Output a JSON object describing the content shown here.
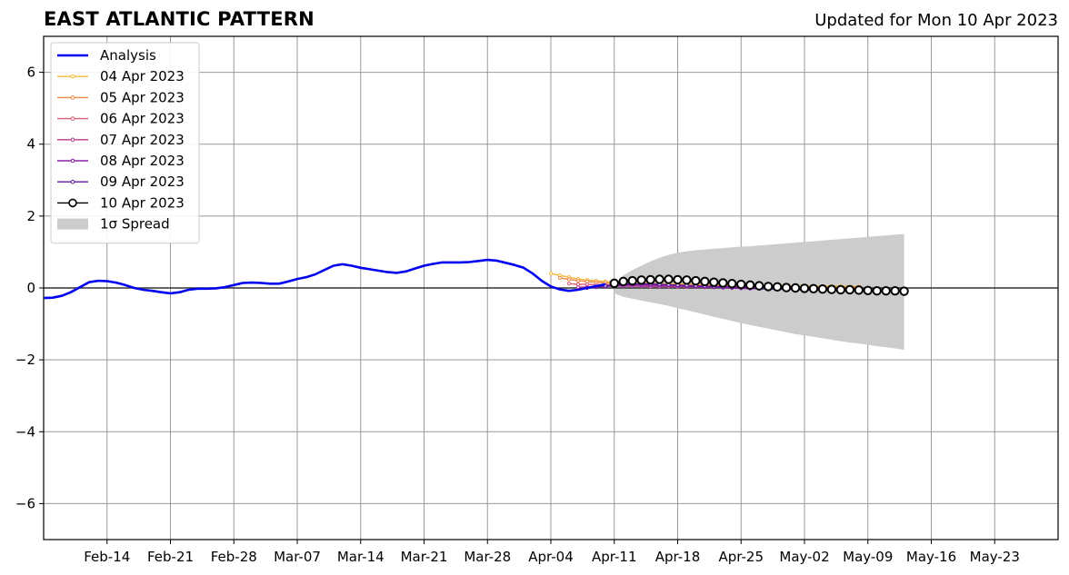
{
  "header": {
    "title": "EAST ATLANTIC PATTERN",
    "updated": "Updated for Mon 10 Apr 2023"
  },
  "chart_data": {
    "type": "line",
    "title": "EAST ATLANTIC PATTERN",
    "subtitle": "Updated for Mon 10 Apr 2023",
    "xlabel": "",
    "ylabel": "",
    "xlim": [
      "2023-02-07",
      "2023-05-30"
    ],
    "ylim": [
      -7,
      7
    ],
    "grid": true,
    "legend_position": "top-left",
    "x_ticks": [
      "2023-02-14",
      "2023-02-21",
      "2023-02-28",
      "2023-03-07",
      "2023-03-14",
      "2023-03-21",
      "2023-03-28",
      "2023-04-04",
      "2023-04-11",
      "2023-04-18",
      "2023-04-25",
      "2023-05-02",
      "2023-05-09",
      "2023-05-16",
      "2023-05-23"
    ],
    "x_tick_labels": [
      "Feb-14",
      "Feb-21",
      "Feb-28",
      "Mar-07",
      "Mar-14",
      "Mar-21",
      "Mar-28",
      "Apr-04",
      "Apr-11",
      "Apr-18",
      "Apr-25",
      "May-02",
      "May-09",
      "May-16",
      "May-23"
    ],
    "y_ticks": [
      -6,
      -4,
      -2,
      0,
      2,
      4,
      6
    ],
    "y_tick_labels": [
      "−6",
      "−4",
      "−2",
      "0",
      "2",
      "4",
      "6"
    ],
    "analysis": {
      "name": "Analysis",
      "color": "#0000ee",
      "points": [
        [
          "2023-02-07",
          -0.28
        ],
        [
          "2023-02-08",
          -0.27
        ],
        [
          "2023-02-09",
          -0.22
        ],
        [
          "2023-02-10",
          -0.12
        ],
        [
          "2023-02-11",
          0.02
        ],
        [
          "2023-02-12",
          0.16
        ],
        [
          "2023-02-13",
          0.2
        ],
        [
          "2023-02-14",
          0.19
        ],
        [
          "2023-02-15",
          0.15
        ],
        [
          "2023-02-16",
          0.08
        ],
        [
          "2023-02-17",
          0.0
        ],
        [
          "2023-02-18",
          -0.05
        ],
        [
          "2023-02-19",
          -0.08
        ],
        [
          "2023-02-20",
          -0.12
        ],
        [
          "2023-02-21",
          -0.15
        ],
        [
          "2023-02-22",
          -0.12
        ],
        [
          "2023-02-23",
          -0.05
        ],
        [
          "2023-02-24",
          -0.02
        ],
        [
          "2023-02-25",
          -0.02
        ],
        [
          "2023-02-26",
          -0.01
        ],
        [
          "2023-02-27",
          0.02
        ],
        [
          "2023-02-28",
          0.08
        ],
        [
          "2023-03-01",
          0.14
        ],
        [
          "2023-03-02",
          0.15
        ],
        [
          "2023-03-03",
          0.14
        ],
        [
          "2023-03-04",
          0.12
        ],
        [
          "2023-03-05",
          0.12
        ],
        [
          "2023-03-06",
          0.18
        ],
        [
          "2023-03-07",
          0.25
        ],
        [
          "2023-03-08",
          0.3
        ],
        [
          "2023-03-09",
          0.38
        ],
        [
          "2023-03-10",
          0.5
        ],
        [
          "2023-03-11",
          0.62
        ],
        [
          "2023-03-12",
          0.66
        ],
        [
          "2023-03-13",
          0.62
        ],
        [
          "2023-03-14",
          0.56
        ],
        [
          "2023-03-15",
          0.52
        ],
        [
          "2023-03-16",
          0.48
        ],
        [
          "2023-03-17",
          0.44
        ],
        [
          "2023-03-18",
          0.42
        ],
        [
          "2023-03-19",
          0.46
        ],
        [
          "2023-03-20",
          0.54
        ],
        [
          "2023-03-21",
          0.62
        ],
        [
          "2023-03-22",
          0.67
        ],
        [
          "2023-03-23",
          0.71
        ],
        [
          "2023-03-24",
          0.71
        ],
        [
          "2023-03-25",
          0.71
        ],
        [
          "2023-03-26",
          0.72
        ],
        [
          "2023-03-27",
          0.75
        ],
        [
          "2023-03-28",
          0.78
        ],
        [
          "2023-03-29",
          0.76
        ],
        [
          "2023-03-30",
          0.7
        ],
        [
          "2023-03-31",
          0.64
        ],
        [
          "2023-04-01",
          0.56
        ],
        [
          "2023-04-02",
          0.4
        ],
        [
          "2023-04-03",
          0.2
        ],
        [
          "2023-04-04",
          0.04
        ],
        [
          "2023-04-05",
          -0.04
        ],
        [
          "2023-04-06",
          -0.08
        ],
        [
          "2023-04-07",
          -0.05
        ],
        [
          "2023-04-08",
          0.0
        ],
        [
          "2023-04-09",
          0.05
        ],
        [
          "2023-04-10",
          0.1
        ]
      ]
    },
    "forecasts": [
      {
        "name": "04 Apr 2023",
        "color": "#f4b83a",
        "start": "2023-04-04",
        "values": [
          0.4,
          0.35,
          0.3,
          0.25,
          0.22,
          0.2,
          0.18,
          0.17,
          0.16,
          0.15,
          0.14,
          0.13,
          0.12,
          0.12,
          0.11,
          0.1,
          0.1,
          0.09,
          0.09,
          0.08,
          0.08,
          0.08,
          0.07,
          0.07,
          0.07,
          0.06,
          0.06,
          0.06,
          0.06,
          0.05,
          0.05,
          0.05,
          0.05,
          0.04,
          0.04
        ]
      },
      {
        "name": "05 Apr 2023",
        "color": "#ee8a45",
        "start": "2023-04-05",
        "values": [
          0.28,
          0.24,
          0.2,
          0.18,
          0.16,
          0.14,
          0.13,
          0.12,
          0.11,
          0.1,
          0.1,
          0.09,
          0.08,
          0.08,
          0.07,
          0.07,
          0.06,
          0.06,
          0.06,
          0.05,
          0.05,
          0.05,
          0.04,
          0.04,
          0.04,
          0.04,
          0.03,
          0.03,
          0.03,
          0.03,
          0.02,
          0.02,
          0.02,
          0.02
        ]
      },
      {
        "name": "06 Apr 2023",
        "color": "#dd5c78",
        "start": "2023-04-06",
        "values": [
          0.12,
          0.1,
          0.1,
          0.09,
          0.09,
          0.08,
          0.08,
          0.07,
          0.07,
          0.06,
          0.06,
          0.05,
          0.05,
          0.05,
          0.04,
          0.04,
          0.04,
          0.03,
          0.03,
          0.03,
          0.02,
          0.02,
          0.02,
          0.01,
          0.01,
          0.01,
          0.0,
          0.0,
          0.0,
          -0.01,
          -0.01,
          -0.01,
          -0.02
        ]
      },
      {
        "name": "07 Apr 2023",
        "color": "#b83b94",
        "start": "2023-04-07",
        "values": [
          0.02,
          0.03,
          0.04,
          0.05,
          0.05,
          0.05,
          0.05,
          0.05,
          0.04,
          0.04,
          0.04,
          0.03,
          0.03,
          0.03,
          0.02,
          0.02,
          0.01,
          0.01,
          0.0,
          0.0,
          -0.01,
          -0.01,
          -0.02,
          -0.02,
          -0.02,
          -0.03,
          -0.03,
          -0.03,
          -0.04,
          -0.04,
          -0.04,
          -0.05
        ]
      },
      {
        "name": "08 Apr 2023",
        "color": "#8a22a8",
        "start": "2023-04-08",
        "values": [
          0.0,
          0.02,
          0.04,
          0.06,
          0.07,
          0.08,
          0.08,
          0.08,
          0.07,
          0.07,
          0.06,
          0.05,
          0.04,
          0.03,
          0.02,
          0.01,
          0.0,
          -0.01,
          -0.02,
          -0.02,
          -0.03,
          -0.03,
          -0.04,
          -0.04,
          -0.05,
          -0.05,
          -0.05,
          -0.06,
          -0.06,
          -0.06,
          -0.07
        ]
      },
      {
        "name": "09 Apr 2023",
        "color": "#5c1a9e",
        "start": "2023-04-09",
        "values": [
          0.04,
          0.06,
          0.08,
          0.1,
          0.11,
          0.11,
          0.11,
          0.1,
          0.09,
          0.08,
          0.07,
          0.06,
          0.05,
          0.04,
          0.03,
          0.02,
          0.01,
          0.0,
          -0.01,
          -0.02,
          -0.03,
          -0.03,
          -0.04,
          -0.05,
          -0.05,
          -0.06,
          -0.06,
          -0.07,
          -0.07,
          -0.08
        ]
      },
      {
        "name": "10 Apr 2023",
        "color": "#000000",
        "start": "2023-04-11",
        "markers": true,
        "values": [
          0.13,
          0.18,
          0.2,
          0.22,
          0.23,
          0.24,
          0.24,
          0.23,
          0.22,
          0.2,
          0.18,
          0.16,
          0.14,
          0.12,
          0.1,
          0.08,
          0.06,
          0.04,
          0.03,
          0.01,
          0.0,
          -0.01,
          -0.02,
          -0.03,
          -0.04,
          -0.05,
          -0.05,
          -0.06,
          -0.07,
          -0.08,
          -0.08,
          -0.08,
          -0.09
        ]
      }
    ],
    "spread": {
      "name": "1σ Spread",
      "color": "#cccccc",
      "points": [
        [
          "2023-04-11",
          0.05,
          -0.15
        ],
        [
          "2023-04-12",
          0.35,
          -0.25
        ],
        [
          "2023-04-13",
          0.5,
          -0.3
        ],
        [
          "2023-04-14",
          0.62,
          -0.35
        ],
        [
          "2023-04-15",
          0.74,
          -0.4
        ],
        [
          "2023-04-16",
          0.84,
          -0.45
        ],
        [
          "2023-04-17",
          0.92,
          -0.5
        ],
        [
          "2023-04-18",
          0.98,
          -0.56
        ],
        [
          "2023-04-19",
          1.02,
          -0.62
        ],
        [
          "2023-04-20",
          1.05,
          -0.68
        ],
        [
          "2023-04-21",
          1.07,
          -0.74
        ],
        [
          "2023-04-22",
          1.09,
          -0.8
        ],
        [
          "2023-04-23",
          1.11,
          -0.86
        ],
        [
          "2023-04-24",
          1.13,
          -0.92
        ],
        [
          "2023-04-25",
          1.15,
          -0.98
        ],
        [
          "2023-04-26",
          1.16,
          -1.03
        ],
        [
          "2023-04-27",
          1.18,
          -1.08
        ],
        [
          "2023-04-28",
          1.2,
          -1.13
        ],
        [
          "2023-04-29",
          1.22,
          -1.18
        ],
        [
          "2023-04-30",
          1.24,
          -1.23
        ],
        [
          "2023-05-01",
          1.26,
          -1.28
        ],
        [
          "2023-05-02",
          1.28,
          -1.32
        ],
        [
          "2023-05-03",
          1.3,
          -1.36
        ],
        [
          "2023-05-04",
          1.32,
          -1.4
        ],
        [
          "2023-05-05",
          1.34,
          -1.44
        ],
        [
          "2023-05-06",
          1.36,
          -1.48
        ],
        [
          "2023-05-07",
          1.38,
          -1.52
        ],
        [
          "2023-05-08",
          1.4,
          -1.55
        ],
        [
          "2023-05-09",
          1.42,
          -1.58
        ],
        [
          "2023-05-10",
          1.44,
          -1.62
        ],
        [
          "2023-05-11",
          1.46,
          -1.65
        ],
        [
          "2023-05-12",
          1.48,
          -1.68
        ],
        [
          "2023-05-13",
          1.5,
          -1.72
        ]
      ]
    }
  }
}
